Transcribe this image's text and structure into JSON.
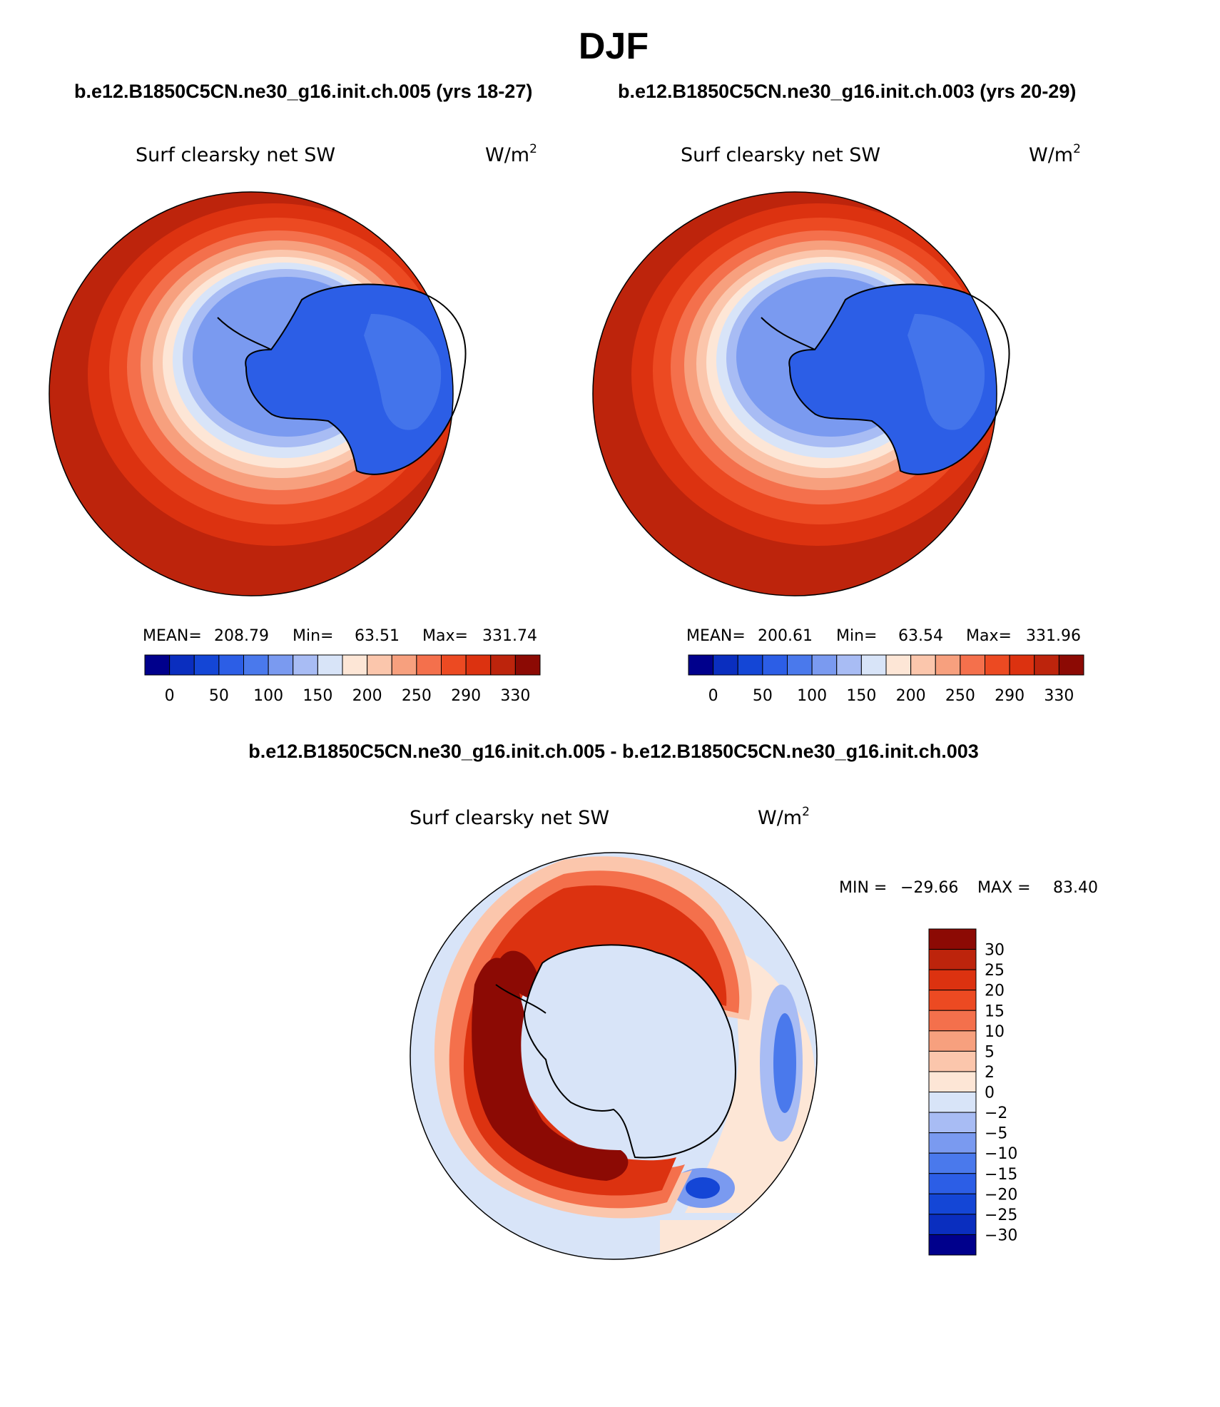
{
  "chart_data": {
    "type": "heatmap",
    "title": "DJF",
    "projection": "south polar stereographic",
    "panels": [
      {
        "case_title": "b.e12.B1850C5CN.ne30_g16.init.ch.005 (yrs 18-27)",
        "variable": "Surf clearsky net SW",
        "units_base": "W/m",
        "units_sup": "2",
        "mean_label": "MEAN=",
        "mean": "208.79",
        "min_label": "Min=",
        "min": "63.51",
        "max_label": "Max=",
        "max": "331.74",
        "contour_levels": [
          0,
          25,
          50,
          75,
          100,
          125,
          150,
          175,
          200,
          225,
          250,
          270,
          290,
          310,
          330
        ],
        "colorbar_labels": [
          "0",
          "50",
          "100",
          "150",
          "200",
          "250",
          "290",
          "330"
        ],
        "colorbar_colors": [
          "#00008c",
          "#0a2ebf",
          "#1446d6",
          "#2c5ee6",
          "#4a79ec",
          "#7a9af0",
          "#a8bcf4",
          "#d8e4f8",
          "#fde6d6",
          "#fbc6ac",
          "#f7a07e",
          "#f4704c",
          "#ec4a22",
          "#dc3210",
          "#bd240c",
          "#8c0a04"
        ],
        "zones": {
          "ocean_outer": 320,
          "ocean_mid": 290,
          "ice_edge": 230,
          "sea_ice": 140,
          "ice_sheet": 85
        }
      },
      {
        "case_title": "b.e12.B1850C5CN.ne30_g16.init.ch.003 (yrs 20-29)",
        "variable": "Surf clearsky net SW",
        "units_base": "W/m",
        "units_sup": "2",
        "mean_label": "MEAN=",
        "mean": "200.61",
        "min_label": "Min=",
        "min": "63.54",
        "max_label": "Max=",
        "max": "331.96",
        "contour_levels": [
          0,
          25,
          50,
          75,
          100,
          125,
          150,
          175,
          200,
          225,
          250,
          270,
          290,
          310,
          330
        ],
        "colorbar_labels": [
          "0",
          "50",
          "100",
          "150",
          "200",
          "250",
          "290",
          "330"
        ],
        "colorbar_colors": [
          "#00008c",
          "#0a2ebf",
          "#1446d6",
          "#2c5ee6",
          "#4a79ec",
          "#7a9af0",
          "#a8bcf4",
          "#d8e4f8",
          "#fde6d6",
          "#fbc6ac",
          "#f7a07e",
          "#f4704c",
          "#ec4a22",
          "#dc3210",
          "#bd240c",
          "#8c0a04"
        ],
        "zones": {
          "ocean_outer": 320,
          "ocean_mid": 290,
          "ice_edge": 230,
          "sea_ice": 140,
          "ice_sheet": 85
        }
      }
    ],
    "difference": {
      "case_title": "b.e12.B1850C5CN.ne30_g16.init.ch.005 - b.e12.B1850C5CN.ne30_g16.init.ch.003",
      "variable": "Surf clearsky net SW",
      "units_base": "W/m",
      "units_sup": "2",
      "min_label": "MIN =",
      "min": "−29.66",
      "max_label": "MAX =",
      "max": "83.40",
      "contour_levels": [
        30,
        25,
        20,
        15,
        10,
        5,
        2,
        0,
        -2,
        -5,
        -10,
        -15,
        -20,
        -25,
        -30
      ],
      "colorbar_labels": [
        "30",
        "25",
        "20",
        "15",
        "10",
        "5",
        "2",
        "0",
        "−2",
        "−5",
        "−10",
        "−15",
        "−20",
        "−25",
        "−30"
      ],
      "colorbar_colors": [
        "#8c0a04",
        "#bd240c",
        "#dc3210",
        "#ec4a22",
        "#f4704c",
        "#f7a07e",
        "#fbc6ac",
        "#fde6d6",
        "#d8e4f8",
        "#a8bcf4",
        "#7a9af0",
        "#4a79ec",
        "#2c5ee6",
        "#1446d6",
        "#0a2ebf",
        "#00008c"
      ]
    }
  }
}
